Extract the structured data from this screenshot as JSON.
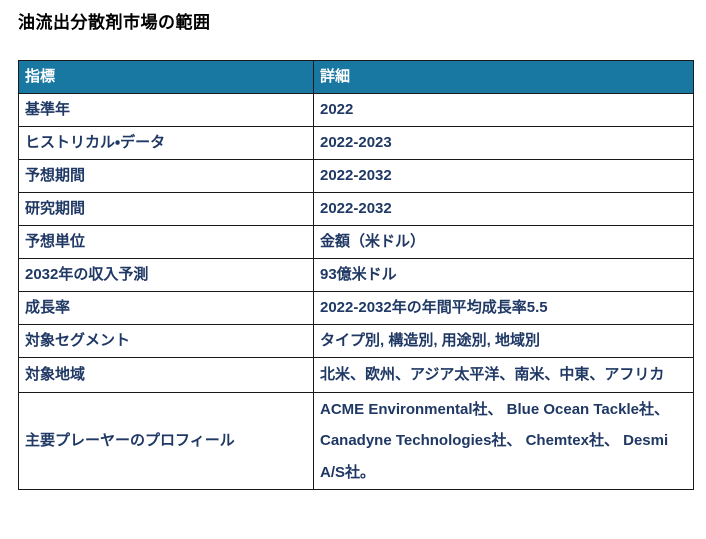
{
  "page": {
    "title": "油流出分散剤市場の範囲"
  },
  "colors": {
    "header_bg": "#1878a2",
    "header_text": "#ffffff",
    "body_text": "#1f3864",
    "border": "#1a1a1a",
    "background": "#ffffff"
  },
  "table": {
    "headers": [
      "指標",
      "詳細"
    ],
    "rows": [
      {
        "label": "基準年",
        "value": "2022"
      },
      {
        "label": "ヒストリカル・データ",
        "value": "2022-2023"
      },
      {
        "label": "予想期間",
        "value": "2022-2032"
      },
      {
        "label": "研究期間",
        "value": "2022-2032"
      },
      {
        "label": "予想単位",
        "value": "金額（米ドル）"
      },
      {
        "label": "2032年の収入予測",
        "value": "93億米ドル"
      },
      {
        "label": "成長率",
        "value": "2022-2032年の年間平均成長率5.5"
      },
      {
        "label": "対象セグメント",
        "value": "タイプ別, 構造別, 用途別, 地域別"
      },
      {
        "label": "対象地域",
        "value": "北米、欧州、アジア太平洋、南米、中東、アフリカ"
      },
      {
        "label": "主要プレーヤーのプロフィール",
        "value": "ACME Environmental社、 Blue Ocean Tackle社、 Canadyne Technologies社、 Chemtex社、 Desmi A/S社。"
      }
    ]
  }
}
